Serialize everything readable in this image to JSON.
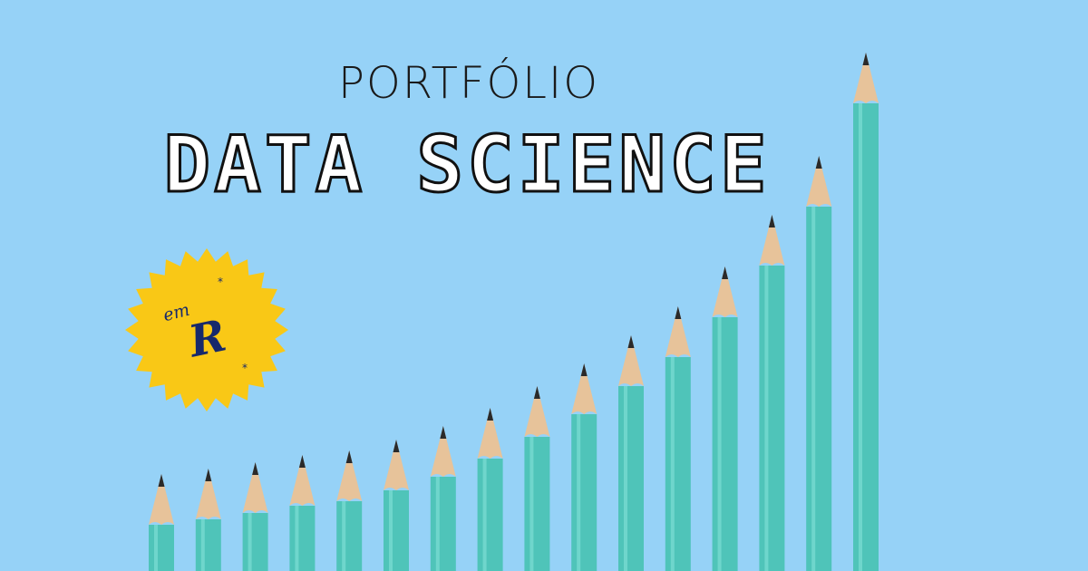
{
  "header": {
    "line1": "PORTFÓLIO",
    "line2": "DATA SCIENCE"
  },
  "badge": {
    "small_text": "em",
    "big_text": "R",
    "fill_color": "#f9c816",
    "text_color": "#17296b"
  },
  "pencils": {
    "count": 16,
    "tip_heights": [
      523,
      517,
      510,
      502,
      497,
      485,
      470,
      450,
      426,
      401,
      370,
      338,
      294,
      237,
      172,
      58
    ],
    "body_color": "#4fc4b9",
    "wood_color": "#e7c39a",
    "lead_color": "#2a2a2a"
  }
}
